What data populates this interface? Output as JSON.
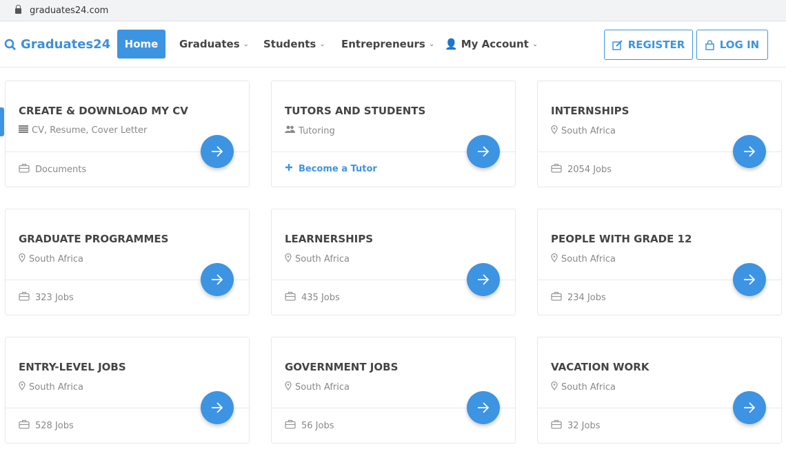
{
  "browser": {
    "url": "graduates24.com"
  },
  "nav": {
    "logo": "Graduates24",
    "home": "Home",
    "items": [
      "Graduates",
      "Students",
      "Entrepreneurs",
      "My Account"
    ],
    "register": "REGISTER",
    "login": "LOG IN"
  },
  "accent": "#3d94e2",
  "cards": [
    {
      "title": "CREATE & DOWNLOAD MY CV",
      "sub": "CV, Resume, Cover Letter",
      "sub_icon": "list-icon",
      "footer": "Documents",
      "footer_icon": "briefcase-icon"
    },
    {
      "title": "TUTORS AND STUDENTS",
      "sub": "Tutoring",
      "sub_icon": "users-icon",
      "footer": "Become a Tutor",
      "footer_icon": "plus-icon"
    },
    {
      "title": "INTERNSHIPS",
      "sub": "South Africa",
      "sub_icon": "map-pin-icon",
      "footer": "2054 Jobs",
      "footer_icon": "briefcase-icon"
    },
    {
      "title": "GRADUATE PROGRAMMES",
      "sub": "South Africa",
      "sub_icon": "map-pin-icon",
      "footer": "323 Jobs",
      "footer_icon": "briefcase-icon"
    },
    {
      "title": "LEARNERSHIPS",
      "sub": "South Africa",
      "sub_icon": "map-pin-icon",
      "footer": "435 Jobs",
      "footer_icon": "briefcase-icon"
    },
    {
      "title": "PEOPLE WITH GRADE 12",
      "sub": "South Africa",
      "sub_icon": "map-pin-icon",
      "footer": "234 Jobs",
      "footer_icon": "briefcase-icon"
    },
    {
      "title": "ENTRY-LEVEL JOBS",
      "sub": "South Africa",
      "sub_icon": "map-pin-icon",
      "footer": "528 Jobs",
      "footer_icon": "briefcase-icon"
    },
    {
      "title": "GOVERNMENT JOBS",
      "sub": "South Africa",
      "sub_icon": "map-pin-icon",
      "footer": "56 Jobs",
      "footer_icon": "briefcase-icon"
    },
    {
      "title": "VACATION WORK",
      "sub": "South Africa",
      "sub_icon": "map-pin-icon",
      "footer": "32 Jobs",
      "footer_icon": "briefcase-icon"
    }
  ]
}
